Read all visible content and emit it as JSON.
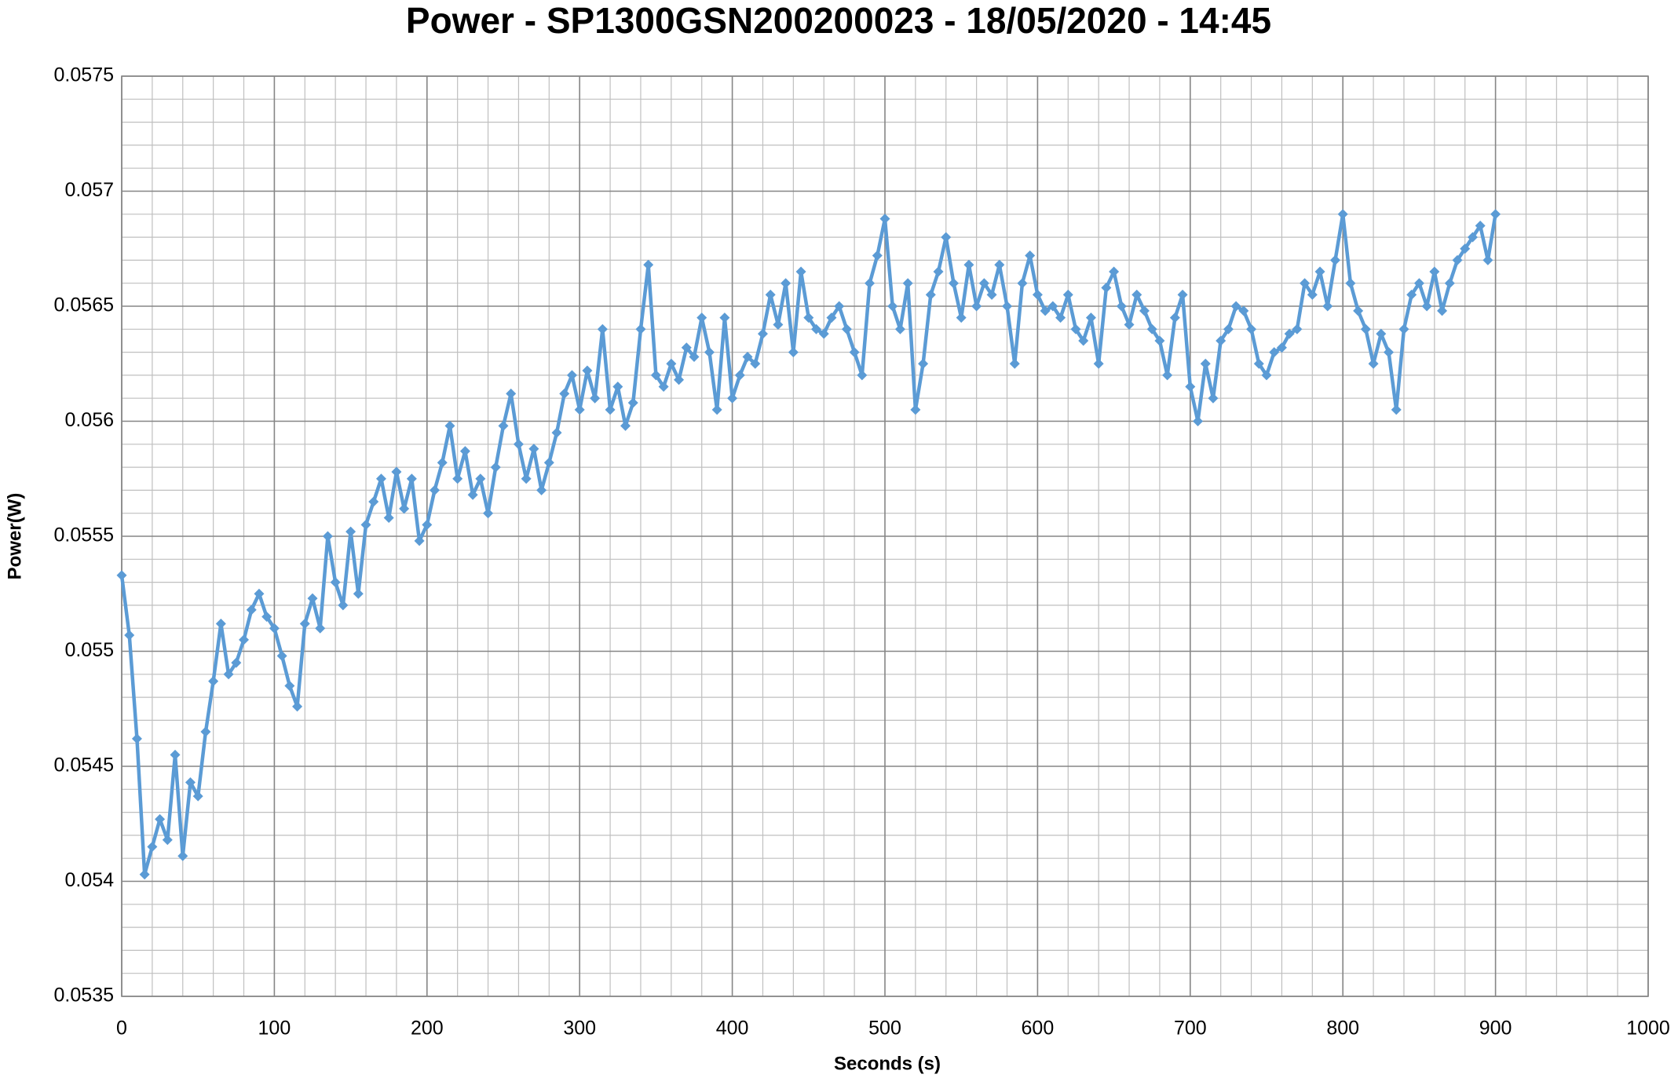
{
  "chart_data": {
    "type": "line",
    "title": "Power - SP1300GSN200200023 - 18/05/2020 - 14:45",
    "x_label": "Seconds (s)",
    "y_label": "Power(W)",
    "color": "#5b9bd5",
    "marker": "diamond",
    "grid": true,
    "minor_divisions": 5,
    "xlim": [
      0,
      1000
    ],
    "xticks": [
      0,
      100,
      200,
      300,
      400,
      500,
      600,
      700,
      800,
      900,
      1000
    ],
    "ylim": [
      0.0535,
      0.0575
    ],
    "yticks": [
      0.0535,
      0.054,
      0.0545,
      0.055,
      0.0555,
      0.056,
      0.0565,
      0.057,
      0.0575
    ],
    "x": [
      0,
      5,
      10,
      15,
      20,
      25,
      30,
      35,
      40,
      45,
      50,
      55,
      60,
      65,
      70,
      75,
      80,
      85,
      90,
      95,
      100,
      105,
      110,
      115,
      120,
      125,
      130,
      135,
      140,
      145,
      150,
      155,
      160,
      165,
      170,
      175,
      180,
      185,
      190,
      195,
      200,
      205,
      210,
      215,
      220,
      225,
      230,
      235,
      240,
      245,
      250,
      255,
      260,
      265,
      270,
      275,
      280,
      285,
      290,
      295,
      300,
      305,
      310,
      315,
      320,
      325,
      330,
      335,
      340,
      345,
      350,
      355,
      360,
      365,
      370,
      375,
      380,
      385,
      390,
      395,
      400,
      405,
      410,
      415,
      420,
      425,
      430,
      435,
      440,
      445,
      450,
      455,
      460,
      465,
      470,
      475,
      480,
      485,
      490,
      495,
      500,
      505,
      510,
      515,
      520,
      525,
      530,
      535,
      540,
      545,
      550,
      555,
      560,
      565,
      570,
      575,
      580,
      585,
      590,
      595,
      600,
      605,
      610,
      615,
      620,
      625,
      630,
      635,
      640,
      645,
      650,
      655,
      660,
      665,
      670,
      675,
      680,
      685,
      690,
      695,
      700,
      705,
      710,
      715,
      720,
      725,
      730,
      735,
      740,
      745,
      750,
      755,
      760,
      765,
      770,
      775,
      780,
      785,
      790,
      795,
      800,
      805,
      810,
      815,
      820,
      825,
      830,
      835,
      840,
      845,
      850,
      855,
      860,
      865,
      870,
      875,
      880,
      885,
      890,
      895,
      900
    ],
    "values": [
      0.05533,
      0.05507,
      0.05462,
      0.05403,
      0.05415,
      0.05427,
      0.05418,
      0.05455,
      0.05411,
      0.05443,
      0.05437,
      0.05465,
      0.05487,
      0.05512,
      0.0549,
      0.05495,
      0.05505,
      0.05518,
      0.05525,
      0.05515,
      0.0551,
      0.05498,
      0.05485,
      0.05476,
      0.05512,
      0.05523,
      0.0551,
      0.0555,
      0.0553,
      0.0552,
      0.05552,
      0.05525,
      0.05555,
      0.05565,
      0.05575,
      0.05558,
      0.05578,
      0.05562,
      0.05575,
      0.05548,
      0.05555,
      0.0557,
      0.05582,
      0.05598,
      0.05575,
      0.05587,
      0.05568,
      0.05575,
      0.0556,
      0.0558,
      0.05598,
      0.05612,
      0.0559,
      0.05575,
      0.05588,
      0.0557,
      0.05582,
      0.05595,
      0.05612,
      0.0562,
      0.05605,
      0.05622,
      0.0561,
      0.0564,
      0.05605,
      0.05615,
      0.05598,
      0.05608,
      0.0564,
      0.05668,
      0.0562,
      0.05615,
      0.05625,
      0.05618,
      0.05632,
      0.05628,
      0.05645,
      0.0563,
      0.05605,
      0.05645,
      0.0561,
      0.0562,
      0.05628,
      0.05625,
      0.05638,
      0.05655,
      0.05642,
      0.0566,
      0.0563,
      0.05665,
      0.05645,
      0.0564,
      0.05638,
      0.05645,
      0.0565,
      0.0564,
      0.0563,
      0.0562,
      0.0566,
      0.05672,
      0.05688,
      0.0565,
      0.0564,
      0.0566,
      0.05605,
      0.05625,
      0.05655,
      0.05665,
      0.0568,
      0.0566,
      0.05645,
      0.05668,
      0.0565,
      0.0566,
      0.05655,
      0.05668,
      0.0565,
      0.05625,
      0.0566,
      0.05672,
      0.05655,
      0.05648,
      0.0565,
      0.05645,
      0.05655,
      0.0564,
      0.05635,
      0.05645,
      0.05625,
      0.05658,
      0.05665,
      0.0565,
      0.05642,
      0.05655,
      0.05648,
      0.0564,
      0.05635,
      0.0562,
      0.05645,
      0.05655,
      0.05615,
      0.056,
      0.05625,
      0.0561,
      0.05635,
      0.0564,
      0.0565,
      0.05648,
      0.0564,
      0.05625,
      0.0562,
      0.0563,
      0.05632,
      0.05638,
      0.0564,
      0.0566,
      0.05655,
      0.05665,
      0.0565,
      0.0567,
      0.0569,
      0.0566,
      0.05648,
      0.0564,
      0.05625,
      0.05638,
      0.0563,
      0.05605,
      0.0564,
      0.05655,
      0.0566,
      0.0565,
      0.05665,
      0.05648,
      0.0566,
      0.0567,
      0.05675,
      0.0568,
      0.05685,
      0.0567,
      0.0569
    ]
  }
}
